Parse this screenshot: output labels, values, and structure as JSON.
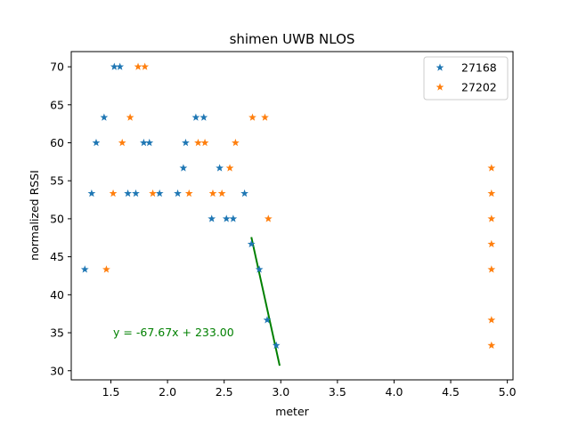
{
  "chart_data": {
    "type": "scatter",
    "title": "shimen UWB NLOS",
    "xlabel": "meter",
    "ylabel": "normalized RSSI",
    "xlim": [
      1.15,
      5.05
    ],
    "ylim": [
      28.8,
      72.0
    ],
    "xticks": [
      1.0,
      1.5,
      2.0,
      2.5,
      3.0,
      3.5,
      4.0,
      4.5,
      5.0
    ],
    "xtick_labels": [
      "1.0",
      "1.5",
      "2.0",
      "2.5",
      "3.0",
      "3.5",
      "4.0",
      "4.5",
      "5.0"
    ],
    "yticks": [
      30,
      35,
      40,
      45,
      50,
      55,
      60,
      65,
      70
    ],
    "ytick_labels": [
      "30",
      "35",
      "40",
      "45",
      "50",
      "55",
      "60",
      "65",
      "70"
    ],
    "grid": false,
    "legend": "top-right",
    "marker": "star",
    "series": [
      {
        "name": "27168",
        "color": "#1f77b4",
        "points": [
          [
            1.53,
            70.0
          ],
          [
            1.58,
            70.0
          ],
          [
            1.44,
            63.33
          ],
          [
            2.25,
            63.33
          ],
          [
            2.32,
            63.33
          ],
          [
            1.37,
            60.0
          ],
          [
            1.79,
            60.0
          ],
          [
            1.84,
            60.0
          ],
          [
            2.16,
            60.0
          ],
          [
            2.14,
            56.67
          ],
          [
            2.46,
            56.67
          ],
          [
            1.33,
            53.33
          ],
          [
            1.65,
            53.33
          ],
          [
            1.72,
            53.33
          ],
          [
            1.93,
            53.33
          ],
          [
            2.09,
            53.33
          ],
          [
            2.68,
            53.33
          ],
          [
            2.39,
            50.0
          ],
          [
            2.52,
            50.0
          ],
          [
            2.58,
            50.0
          ],
          [
            2.74,
            46.67
          ],
          [
            1.27,
            43.33
          ],
          [
            2.81,
            43.33
          ],
          [
            2.88,
            36.67
          ],
          [
            2.96,
            33.33
          ]
        ]
      },
      {
        "name": "27202",
        "color": "#ff7f0e",
        "points": [
          [
            1.74,
            70.0
          ],
          [
            1.8,
            70.0
          ],
          [
            1.67,
            63.33
          ],
          [
            2.75,
            63.33
          ],
          [
            2.86,
            63.33
          ],
          [
            1.6,
            60.0
          ],
          [
            2.27,
            60.0
          ],
          [
            2.33,
            60.0
          ],
          [
            2.6,
            60.0
          ],
          [
            2.55,
            56.67
          ],
          [
            4.86,
            56.67
          ],
          [
            1.52,
            53.33
          ],
          [
            1.87,
            53.33
          ],
          [
            2.19,
            53.33
          ],
          [
            2.4,
            53.33
          ],
          [
            2.48,
            53.33
          ],
          [
            4.86,
            53.33
          ],
          [
            2.89,
            50.0
          ],
          [
            4.86,
            50.0
          ],
          [
            4.86,
            46.67
          ],
          [
            1.46,
            43.33
          ],
          [
            4.86,
            43.33
          ],
          [
            4.86,
            36.67
          ],
          [
            4.86,
            33.33
          ]
        ]
      }
    ],
    "fit_line": {
      "color": "#008000",
      "slope": -67.67,
      "intercept": 233.0,
      "x_range": [
        2.74,
        2.99
      ],
      "label": "y = -67.67x + 233.00",
      "label_at": [
        1.52,
        35.0
      ]
    }
  }
}
